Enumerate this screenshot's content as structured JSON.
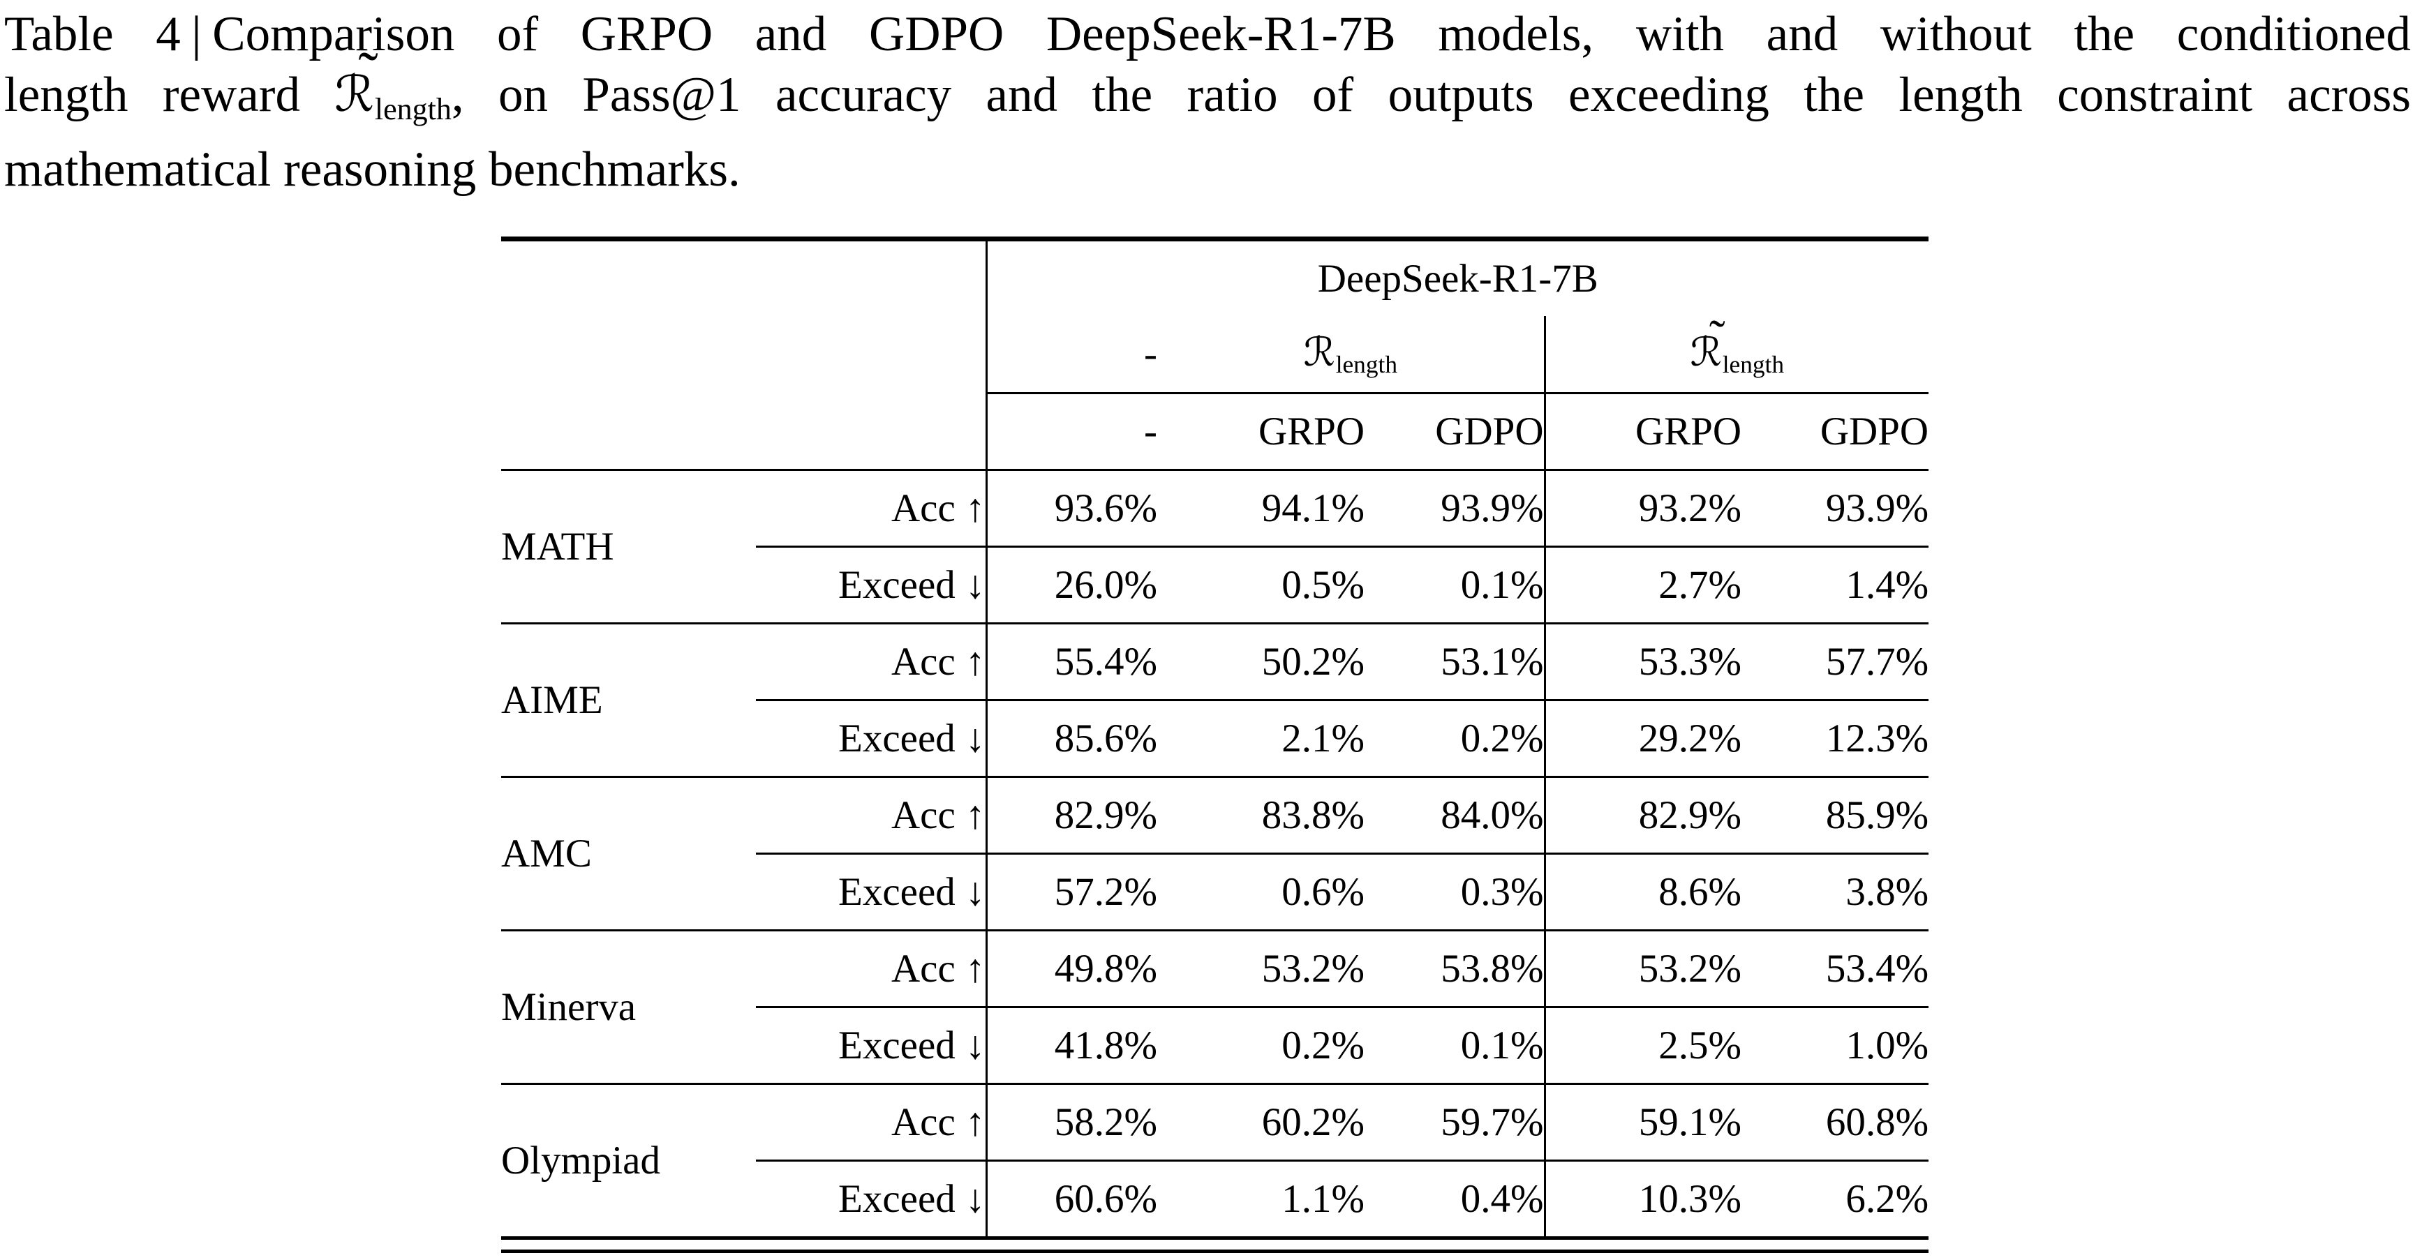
{
  "colors": {
    "text": "#000000",
    "background": "#ffffff",
    "rule": "#000000"
  },
  "caption": {
    "label": "Table 4",
    "separator": "|",
    "line1_rest": "Comparison of GRPO and GDPO DeepSeek-R1-7B models, with and without the conditioned",
    "line2_pre": "length reward ",
    "math": {
      "tilde": "˜",
      "symbol": "ℛ",
      "sub": "length"
    },
    "line2_post": ", on Pass@1 accuracy and the ratio of outputs exceeding the length constraint across",
    "line3": "mathematical reasoning benchmarks."
  },
  "table": {
    "model_header": "DeepSeek-R1-7B",
    "groups": {
      "none_label": "-",
      "r_length": {
        "tilde": "",
        "symbol": "ℛ",
        "sub": "length"
      },
      "r_length_tilde": {
        "tilde": "˜",
        "symbol": "ℛ",
        "sub": "length"
      }
    },
    "method_headers": [
      "-",
      "GRPO",
      "GDPO",
      "GRPO",
      "GDPO"
    ],
    "metrics": {
      "acc": "Acc ↑",
      "exceed": "Exceed ↓"
    },
    "sections": [
      {
        "benchmark": "MATH",
        "acc": [
          {
            "v": "93.6%",
            "bold": false
          },
          {
            "v": "94.1%",
            "bold": true
          },
          {
            "v": "93.9%",
            "bold": false
          },
          {
            "v": "93.2%",
            "bold": false
          },
          {
            "v": "93.9%",
            "bold": true
          }
        ],
        "exceed": [
          {
            "v": "26.0%",
            "bold": false
          },
          {
            "v": "0.5%",
            "bold": false
          },
          {
            "v": "0.1%",
            "bold": true
          },
          {
            "v": "2.7%",
            "bold": false
          },
          {
            "v": "1.4%",
            "bold": true
          }
        ]
      },
      {
        "benchmark": "AIME",
        "acc": [
          {
            "v": "55.4%",
            "bold": false
          },
          {
            "v": "50.2%",
            "bold": false
          },
          {
            "v": "53.1%",
            "bold": true
          },
          {
            "v": "53.3%",
            "bold": false
          },
          {
            "v": "57.7%",
            "bold": true
          }
        ],
        "exceed": [
          {
            "v": "85.6%",
            "bold": false
          },
          {
            "v": "2.1%",
            "bold": false
          },
          {
            "v": "0.2%",
            "bold": true
          },
          {
            "v": "29.2%",
            "bold": false
          },
          {
            "v": "12.3%",
            "bold": true
          }
        ]
      },
      {
        "benchmark": "AMC",
        "acc": [
          {
            "v": "82.9%",
            "bold": false
          },
          {
            "v": "83.8%",
            "bold": false
          },
          {
            "v": "84.0%",
            "bold": true
          },
          {
            "v": "82.9%",
            "bold": false
          },
          {
            "v": "85.9%",
            "bold": true
          }
        ],
        "exceed": [
          {
            "v": "57.2%",
            "bold": false
          },
          {
            "v": "0.6%",
            "bold": false
          },
          {
            "v": "0.3%",
            "bold": true
          },
          {
            "v": "8.6%",
            "bold": false
          },
          {
            "v": "3.8%",
            "bold": true
          }
        ]
      },
      {
        "benchmark": "Minerva",
        "acc": [
          {
            "v": "49.8%",
            "bold": false
          },
          {
            "v": "53.2%",
            "bold": false
          },
          {
            "v": "53.8%",
            "bold": true
          },
          {
            "v": "53.2%",
            "bold": false
          },
          {
            "v": "53.4%",
            "bold": true
          }
        ],
        "exceed": [
          {
            "v": "41.8%",
            "bold": false
          },
          {
            "v": "0.2%",
            "bold": false
          },
          {
            "v": "0.1%",
            "bold": true
          },
          {
            "v": "2.5%",
            "bold": false
          },
          {
            "v": "1.0%",
            "bold": true
          }
        ]
      },
      {
        "benchmark": "Olympiad",
        "acc": [
          {
            "v": "58.2%",
            "bold": false
          },
          {
            "v": "60.2%",
            "bold": true
          },
          {
            "v": "59.7%",
            "bold": false
          },
          {
            "v": "59.1%",
            "bold": false
          },
          {
            "v": "60.8%",
            "bold": true
          }
        ],
        "exceed": [
          {
            "v": "60.6%",
            "bold": false
          },
          {
            "v": "1.1%",
            "bold": false
          },
          {
            "v": "0.4%",
            "bold": true
          },
          {
            "v": "10.3%",
            "bold": false
          },
          {
            "v": "6.2%",
            "bold": true
          }
        ]
      }
    ]
  }
}
